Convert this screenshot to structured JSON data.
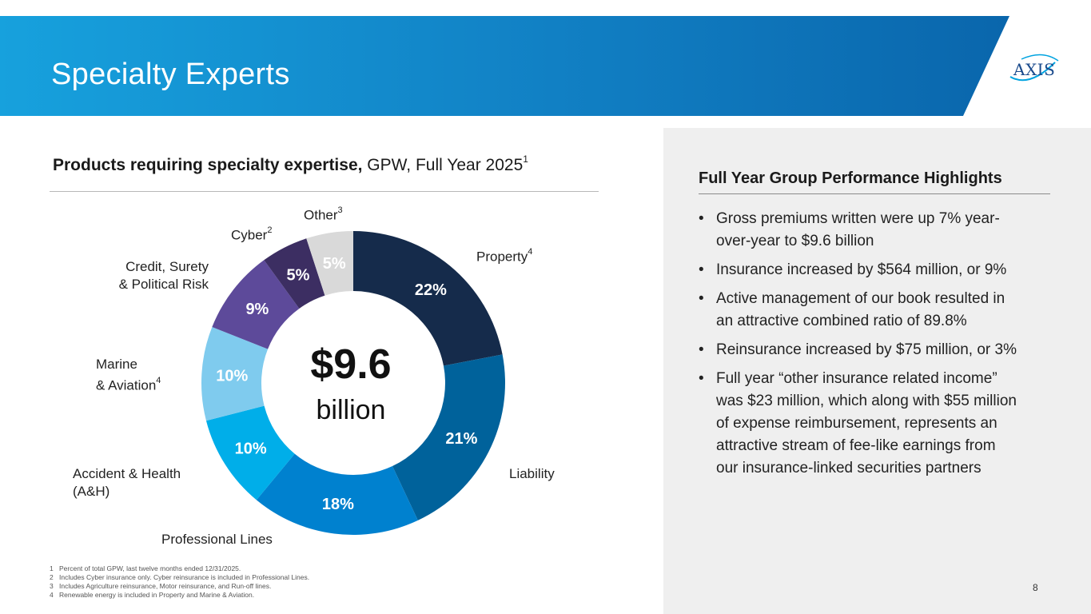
{
  "header": {
    "title": "Specialty Experts",
    "logo_text": "AXIS"
  },
  "chart_section": {
    "subtitle_bold": "Products requiring specialty expertise,",
    "subtitle_rest": " GPW, Full Year 2025",
    "subtitle_sup": "1",
    "center_value": "$9.6",
    "center_unit": "billion"
  },
  "chart_data": {
    "type": "pie",
    "title": "Products requiring specialty expertise, GPW, Full Year 2025",
    "total": "$9.6 billion",
    "unit": "%",
    "slices": [
      {
        "name": "Property",
        "value": 22,
        "label": "22%",
        "color": "#152b4b",
        "text_color": "#ffffff"
      },
      {
        "name": "Liability",
        "value": 21,
        "label": "21%",
        "color": "#00629b",
        "text_color": "#ffffff"
      },
      {
        "name": "Professional Lines",
        "value": 18,
        "label": "18%",
        "color": "#0081cf",
        "text_color": "#ffffff"
      },
      {
        "name": "Accident & Health (A&H)",
        "value": 10,
        "label": "10%",
        "color": "#00aee9",
        "text_color": "#ffffff"
      },
      {
        "name": "Marine & Aviation",
        "value": 10,
        "label": "10%",
        "color": "#7fcbee",
        "text_color": "#ffffff"
      },
      {
        "name": "Credit, Surety & Political Risk",
        "value": 9,
        "label": "9%",
        "color": "#5d4a9a",
        "text_color": "#ffffff"
      },
      {
        "name": "Cyber",
        "value": 5,
        "label": "5%",
        "color": "#3c2e62",
        "text_color": "#ffffff"
      },
      {
        "name": "Other",
        "value": 5,
        "label": "5%",
        "color": "#d9d9d9",
        "text_color": "#ffffff"
      }
    ]
  },
  "chart_labels": {
    "property": "Property",
    "property_sup": "4",
    "liability": "Liability",
    "professional": "Professional Lines",
    "ah_line1": "Accident & Health",
    "ah_line2": "(A&H)",
    "marine_line1": "Marine",
    "marine_line2": "& Aviation",
    "marine_sup": "4",
    "credit_line1": "Credit, Surety",
    "credit_line2": "& Political Risk",
    "cyber": "Cyber",
    "cyber_sup": "2",
    "other": "Other",
    "other_sup": "3"
  },
  "footnotes": [
    {
      "num": "1",
      "text": "Percent of total GPW, last twelve months ended 12/31/2025."
    },
    {
      "num": "2",
      "text": "Includes Cyber insurance only. Cyber reinsurance is included in Professional Lines."
    },
    {
      "num": "3",
      "text": "Includes Agriculture reinsurance, Motor reinsurance, and Run-off lines."
    },
    {
      "num": "4",
      "text": "Renewable energy is included in Property and Marine & Aviation."
    }
  ],
  "highlights": {
    "title": "Full Year Group Performance Highlights",
    "bullets": [
      "Gross premiums written were up 7% year-over-year to $9.6 billion",
      "Insurance increased by $564 million, or 9%",
      "Active management of our book resulted in an attractive combined ratio of 89.8%",
      "Reinsurance increased by $75 million, or 3%",
      "Full year “other insurance related income” was $23 million, which along with $55 million of expense reimbursement, represents an attractive stream of fee-like earnings from our insurance-linked securities partners"
    ]
  },
  "page_number": "8",
  "colors": {
    "banner_start": "#1aa0dc",
    "banner_end": "#0b67ad"
  }
}
